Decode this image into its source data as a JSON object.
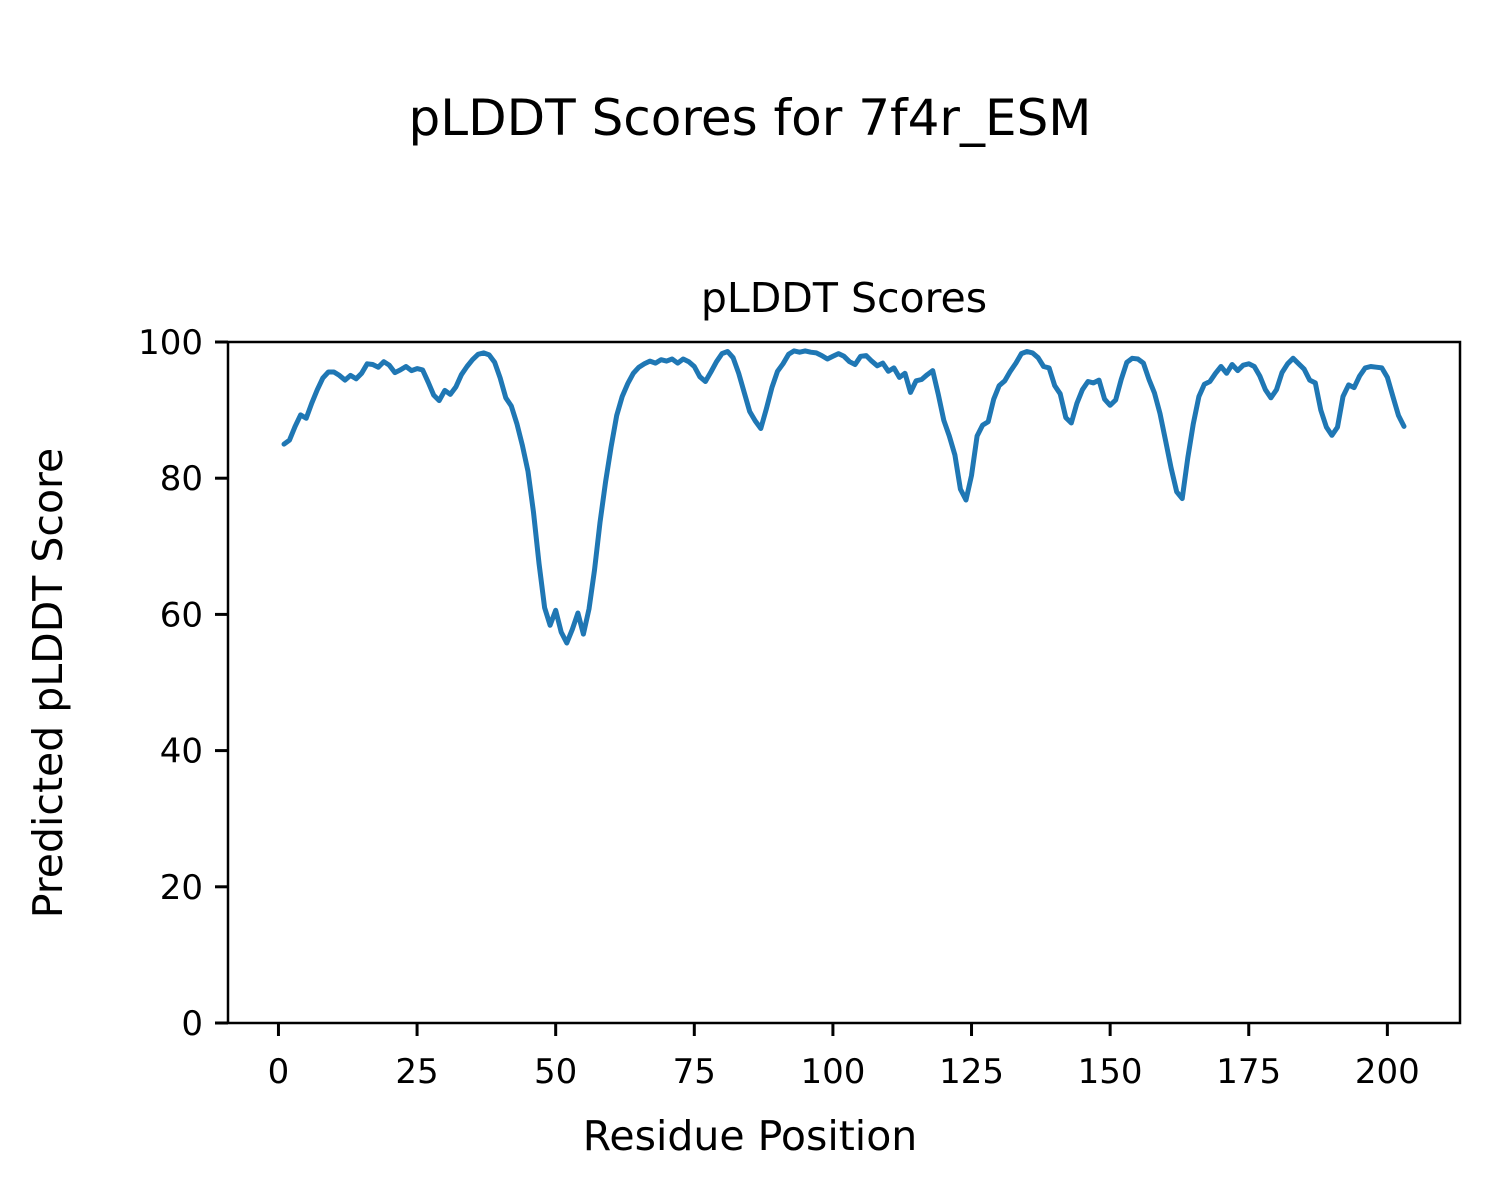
{
  "figure": {
    "suptitle": "pLDDT Scores for 7f4r_ESM",
    "background": "#ffffff"
  },
  "chart_data": {
    "type": "line",
    "title": "pLDDT Scores",
    "xlabel": "Residue Position",
    "ylabel": "Predicted pLDDT Score",
    "xlim": [
      -9.1,
      213.1
    ],
    "ylim": [
      0,
      100
    ],
    "xticks": [
      0,
      25,
      50,
      75,
      100,
      125,
      150,
      175,
      200
    ],
    "yticks": [
      0,
      20,
      40,
      60,
      80,
      100
    ],
    "grid": false,
    "legend_position": "none",
    "axis_color": "#000000",
    "x_start": 1,
    "series": [
      {
        "name": "pLDDT",
        "color": "#1f77b4",
        "line_width": 5,
        "values": [
          85.0,
          85.6,
          87.6,
          89.3,
          88.8,
          91.0,
          93.0,
          94.7,
          95.6,
          95.6,
          95.1,
          94.4,
          95.1,
          94.6,
          95.4,
          96.8,
          96.7,
          96.3,
          97.1,
          96.6,
          95.5,
          95.9,
          96.4,
          95.8,
          96.1,
          95.9,
          94.1,
          92.2,
          91.4,
          92.9,
          92.3,
          93.4,
          95.2,
          96.4,
          97.4,
          98.2,
          98.4,
          98.1,
          97.0,
          94.7,
          91.8,
          90.6,
          88.0,
          84.8,
          81.0,
          75.0,
          67.5,
          61.0,
          58.4,
          60.6,
          57.4,
          55.8,
          57.8,
          60.2,
          57.1,
          60.8,
          66.5,
          73.5,
          79.5,
          84.6,
          89.2,
          92.0,
          93.9,
          95.4,
          96.3,
          96.8,
          97.2,
          96.9,
          97.4,
          97.2,
          97.5,
          96.9,
          97.5,
          97.1,
          96.4,
          94.9,
          94.2,
          95.6,
          97.1,
          98.3,
          98.6,
          97.7,
          95.4,
          92.6,
          89.8,
          88.4,
          87.3,
          90.2,
          93.3,
          95.7,
          96.8,
          98.2,
          98.7,
          98.5,
          98.7,
          98.5,
          98.4,
          98.0,
          97.5,
          97.9,
          98.3,
          97.9,
          97.1,
          96.7,
          97.9,
          98.0,
          97.2,
          96.5,
          96.9,
          95.7,
          96.2,
          94.8,
          95.4,
          92.6,
          94.3,
          94.5,
          95.2,
          95.8,
          92.3,
          88.5,
          86.2,
          83.4,
          78.4,
          76.8,
          80.4,
          86.2,
          87.8,
          88.3,
          91.6,
          93.6,
          94.3,
          95.7,
          96.9,
          98.3,
          98.6,
          98.4,
          97.7,
          96.4,
          96.2,
          93.6,
          92.4,
          88.9,
          88.1,
          91.0,
          93.0,
          94.2,
          94.0,
          94.4,
          91.6,
          90.7,
          91.5,
          94.5,
          97.0,
          97.6,
          97.5,
          96.9,
          94.5,
          92.5,
          89.5,
          85.5,
          81.5,
          78.0,
          77.0,
          83.0,
          88.0,
          92.0,
          93.8,
          94.2,
          95.4,
          96.4,
          95.4,
          96.7,
          95.8,
          96.6,
          96.8,
          96.4,
          95.0,
          93.0,
          91.8,
          93.0,
          95.5,
          96.8,
          97.6,
          96.8,
          96.0,
          94.4,
          94.0,
          90.0,
          87.5,
          86.3,
          87.5,
          92.0,
          93.7,
          93.3,
          95.0,
          96.2,
          96.4,
          96.3,
          96.2,
          94.8,
          92.0,
          89.2,
          87.6
        ]
      }
    ]
  }
}
